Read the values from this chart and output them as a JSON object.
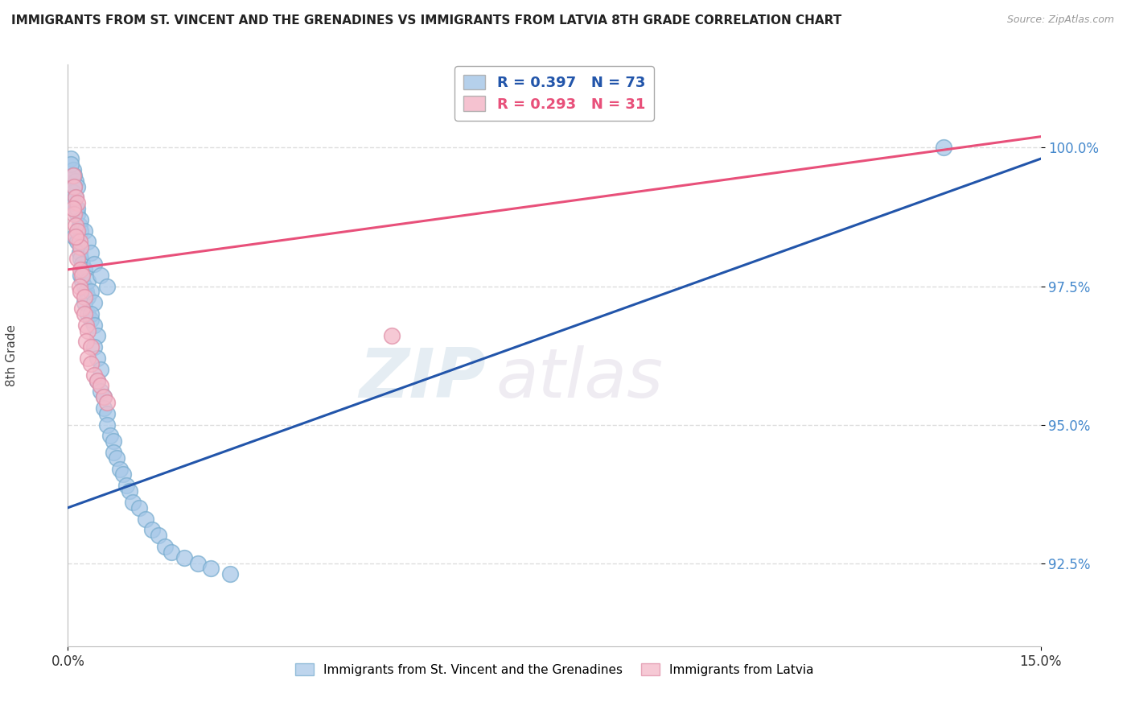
{
  "title": "IMMIGRANTS FROM ST. VINCENT AND THE GRENADINES VS IMMIGRANTS FROM LATVIA 8TH GRADE CORRELATION CHART",
  "source": "Source: ZipAtlas.com",
  "ylabel": "8th Grade",
  "ylabel_tick_values": [
    92.5,
    95.0,
    97.5,
    100.0
  ],
  "xlim": [
    0.0,
    15.0
  ],
  "ylim": [
    91.0,
    101.5
  ],
  "blue_label": "Immigrants from St. Vincent and the Grenadines",
  "pink_label": "Immigrants from Latvia",
  "blue_R": 0.397,
  "blue_N": 73,
  "pink_R": 0.293,
  "pink_N": 31,
  "blue_color": "#a8c8e8",
  "pink_color": "#f4b8c8",
  "blue_edge_color": "#7aaed0",
  "pink_edge_color": "#e090a8",
  "blue_line_color": "#2255aa",
  "pink_line_color": "#e8507a",
  "watermark_color": "#d8e8f0",
  "watermark_zip_color": "#c0d8e8",
  "watermark_atlas_color": "#d0c8e0",
  "grid_color": "#dddddd",
  "ytick_color": "#4488cc",
  "blue_scatter_x": [
    0.05,
    0.08,
    0.1,
    0.12,
    0.15,
    0.08,
    0.1,
    0.12,
    0.15,
    0.18,
    0.2,
    0.1,
    0.15,
    0.18,
    0.2,
    0.22,
    0.25,
    0.2,
    0.22,
    0.25,
    0.28,
    0.3,
    0.25,
    0.3,
    0.35,
    0.25,
    0.3,
    0.35,
    0.4,
    0.35,
    0.4,
    0.45,
    0.4,
    0.45,
    0.5,
    0.45,
    0.5,
    0.55,
    0.55,
    0.6,
    0.6,
    0.65,
    0.7,
    0.7,
    0.75,
    0.8,
    0.85,
    0.9,
    0.95,
    1.0,
    1.1,
    1.2,
    1.3,
    1.4,
    1.5,
    1.6,
    1.8,
    2.0,
    2.2,
    2.5,
    0.05,
    0.08,
    0.1,
    0.12,
    0.15,
    0.2,
    0.25,
    0.3,
    0.35,
    0.4,
    0.5,
    0.6,
    13.5
  ],
  "blue_scatter_y": [
    99.8,
    99.6,
    99.5,
    99.4,
    99.3,
    99.2,
    99.0,
    98.9,
    98.8,
    98.6,
    98.5,
    98.4,
    98.3,
    98.1,
    98.0,
    97.9,
    97.8,
    97.7,
    97.6,
    97.5,
    97.4,
    97.3,
    97.2,
    97.0,
    96.9,
    97.8,
    97.6,
    97.4,
    97.2,
    97.0,
    96.8,
    96.6,
    96.4,
    96.2,
    96.0,
    95.8,
    95.6,
    95.5,
    95.3,
    95.2,
    95.0,
    94.8,
    94.7,
    94.5,
    94.4,
    94.2,
    94.1,
    93.9,
    93.8,
    93.6,
    93.5,
    93.3,
    93.1,
    93.0,
    92.8,
    92.7,
    92.6,
    92.5,
    92.4,
    92.3,
    99.7,
    99.5,
    99.3,
    99.1,
    98.9,
    98.7,
    98.5,
    98.3,
    98.1,
    97.9,
    97.7,
    97.5,
    100.0
  ],
  "pink_scatter_x": [
    0.08,
    0.1,
    0.12,
    0.15,
    0.1,
    0.12,
    0.15,
    0.18,
    0.2,
    0.15,
    0.2,
    0.22,
    0.18,
    0.2,
    0.25,
    0.22,
    0.25,
    0.28,
    0.3,
    0.28,
    0.35,
    0.3,
    0.35,
    0.4,
    0.45,
    0.5,
    0.55,
    0.6,
    0.08,
    0.12,
    5.0
  ],
  "pink_scatter_y": [
    99.5,
    99.3,
    99.1,
    99.0,
    98.8,
    98.6,
    98.5,
    98.3,
    98.2,
    98.0,
    97.8,
    97.7,
    97.5,
    97.4,
    97.3,
    97.1,
    97.0,
    96.8,
    96.7,
    96.5,
    96.4,
    96.2,
    96.1,
    95.9,
    95.8,
    95.7,
    95.5,
    95.4,
    98.9,
    98.4,
    96.6
  ],
  "blue_trendline_x": [
    0.0,
    15.0
  ],
  "blue_trendline_y": [
    93.5,
    99.8
  ],
  "pink_trendline_x": [
    0.0,
    15.0
  ],
  "pink_trendline_y": [
    97.8,
    100.2
  ]
}
